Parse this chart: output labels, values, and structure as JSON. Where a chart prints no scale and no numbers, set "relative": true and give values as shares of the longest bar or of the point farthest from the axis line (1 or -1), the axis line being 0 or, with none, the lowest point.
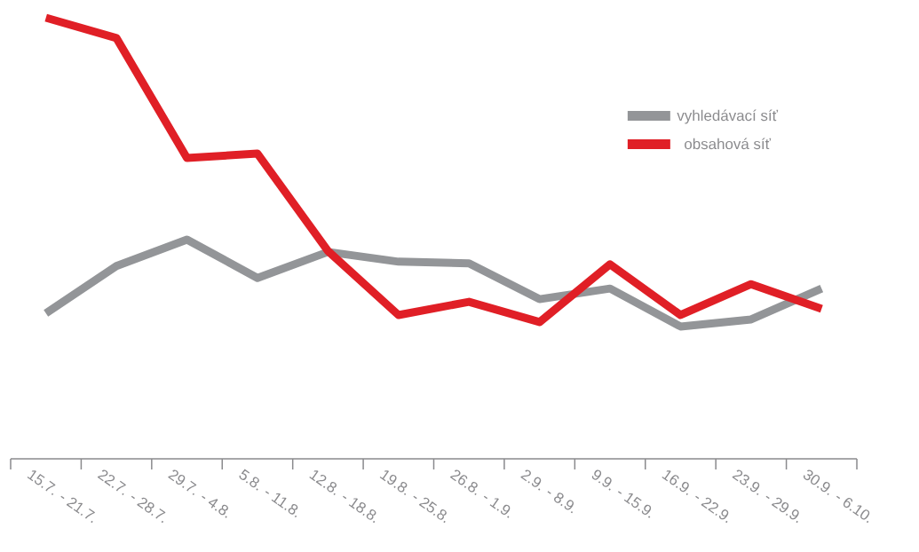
{
  "chart_data": {
    "type": "line",
    "relative": true,
    "categories": [
      "15.7. - 21.7.",
      "22.7. - 28.7.",
      "29.7. - 4.8.",
      "5.8. - 11.8.",
      "12.8. - 18.8.",
      "19.8. - 25.8.",
      "26.8. - 1.9.",
      "2.9. - 8.9.",
      "9.9. - 15.9.",
      "16.9. - 22.9.",
      "23.9. - 29.9.",
      "30.9. - 6.10."
    ],
    "series": [
      {
        "name": "vyhledávací síť",
        "color": "#939598",
        "values": [
          0.33,
          0.437,
          0.497,
          0.41,
          0.469,
          0.447,
          0.443,
          0.362,
          0.386,
          0.3,
          0.316,
          0.386
        ]
      },
      {
        "name": "obsahová síť",
        "color": "#e01f26",
        "values": [
          1,
          0.954,
          0.682,
          0.692,
          0.471,
          0.326,
          0.356,
          0.31,
          0.441,
          0.326,
          0.396,
          0.34
        ]
      }
    ],
    "legend": "top right",
    "marker": "none",
    "line_style": "solid",
    "grid": false
  }
}
